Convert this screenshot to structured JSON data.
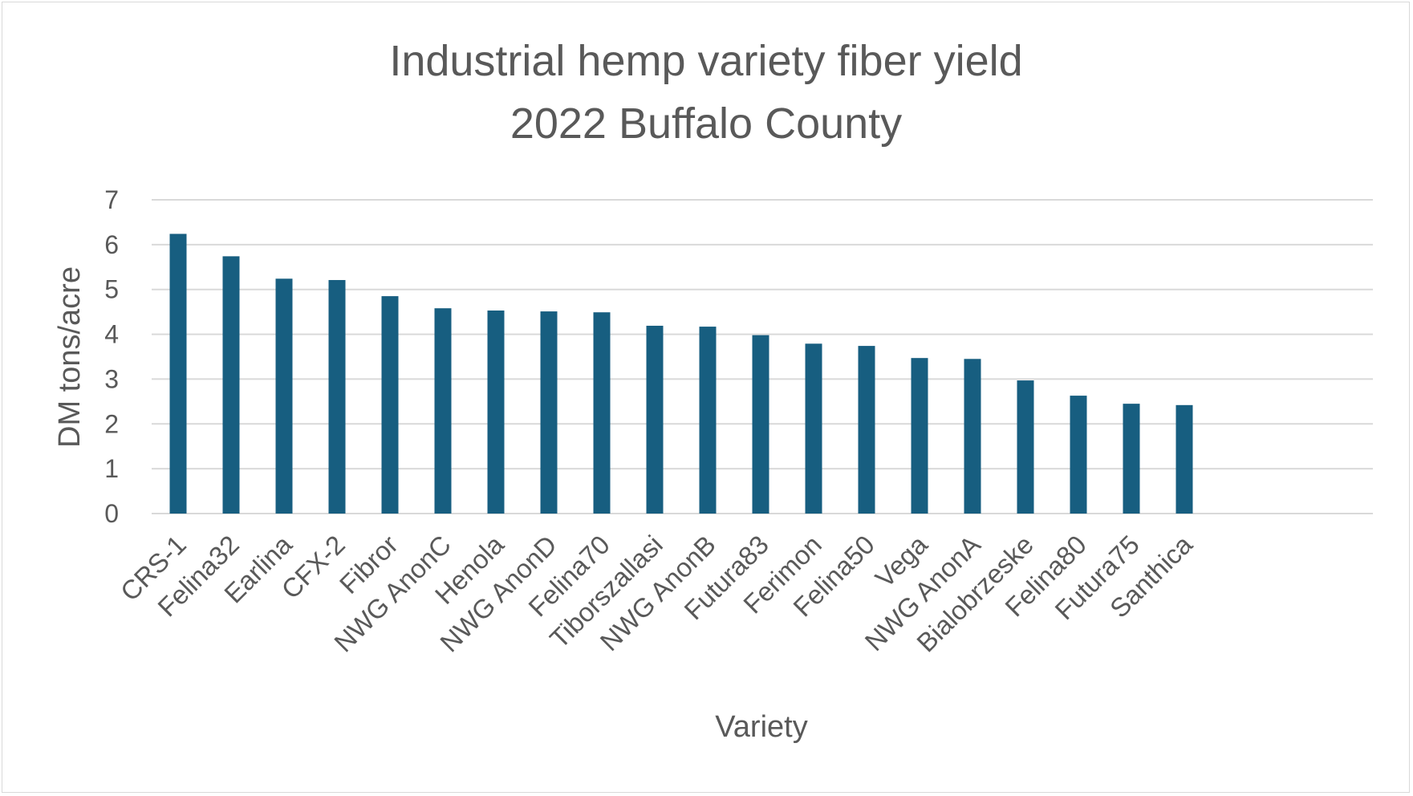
{
  "chart_data": {
    "type": "bar",
    "title_lines": [
      "Industrial hemp variety fiber yield",
      "2022  Buffalo County"
    ],
    "xlabel": "Variety",
    "ylabel": "DM tons/acre",
    "ylim": [
      0,
      7
    ],
    "yticks": [
      0,
      1,
      2,
      3,
      4,
      5,
      6,
      7
    ],
    "grid": true,
    "legend": "none",
    "bar_color": "#175e80",
    "grid_color": "#d9d9d9",
    "categories": [
      "CRS-1",
      "Felina32",
      "Earlina",
      "CFX-2",
      "Fibror",
      "NWG AnonC",
      "Henola",
      "NWG AnonD",
      "Felina70",
      "Tiborszallasi",
      "NWG AnonB",
      "Futura83",
      "Ferimon",
      "Felina50",
      "Vega",
      "NWG AnonA",
      "Bialobrzeske",
      "Felina80",
      "Futura75",
      "Santhica"
    ],
    "values": [
      6.24,
      5.74,
      5.24,
      5.21,
      4.85,
      4.58,
      4.53,
      4.51,
      4.49,
      4.19,
      4.17,
      3.98,
      3.79,
      3.74,
      3.47,
      3.45,
      2.97,
      2.63,
      2.45,
      2.42
    ]
  }
}
